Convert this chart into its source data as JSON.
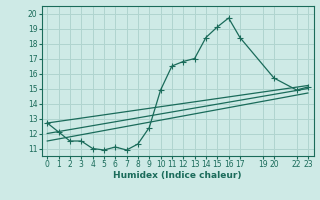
{
  "title": "",
  "xlabel": "Humidex (Indice chaleur)",
  "ylabel": "",
  "bg_color": "#ceeae6",
  "grid_color": "#b0d4cf",
  "line_color": "#1a6b5a",
  "x_ticks": [
    0,
    1,
    2,
    3,
    4,
    5,
    6,
    7,
    8,
    9,
    10,
    11,
    12,
    13,
    14,
    15,
    16,
    17,
    19,
    20,
    22,
    23
  ],
  "x_tick_labels": [
    "0",
    "1",
    "2",
    "3",
    "4",
    "5",
    "6",
    "7",
    "8",
    "9",
    "10",
    "11",
    "12",
    "13",
    "14",
    "15",
    "16",
    "17",
    "19",
    "20",
    "22",
    "23"
  ],
  "y_ticks": [
    11,
    12,
    13,
    14,
    15,
    16,
    17,
    18,
    19,
    20
  ],
  "ylim": [
    10.5,
    20.5
  ],
  "xlim": [
    -0.5,
    23.5
  ],
  "series1_x": [
    0,
    1,
    2,
    3,
    4,
    5,
    6,
    7,
    8,
    9,
    10,
    11,
    12,
    13,
    14,
    15,
    16,
    17,
    20,
    22,
    23
  ],
  "series1_y": [
    12.7,
    12.1,
    11.5,
    11.5,
    11.0,
    10.9,
    11.1,
    10.9,
    11.3,
    12.4,
    14.9,
    16.5,
    16.8,
    17.0,
    18.4,
    19.1,
    19.7,
    18.4,
    15.7,
    14.9,
    15.1
  ],
  "series2_x": [
    0,
    23
  ],
  "series2_y": [
    12.0,
    15.0
  ],
  "series3_x": [
    0,
    23
  ],
  "series3_y": [
    12.7,
    15.2
  ],
  "series4_x": [
    0,
    23
  ],
  "series4_y": [
    11.5,
    14.7
  ]
}
